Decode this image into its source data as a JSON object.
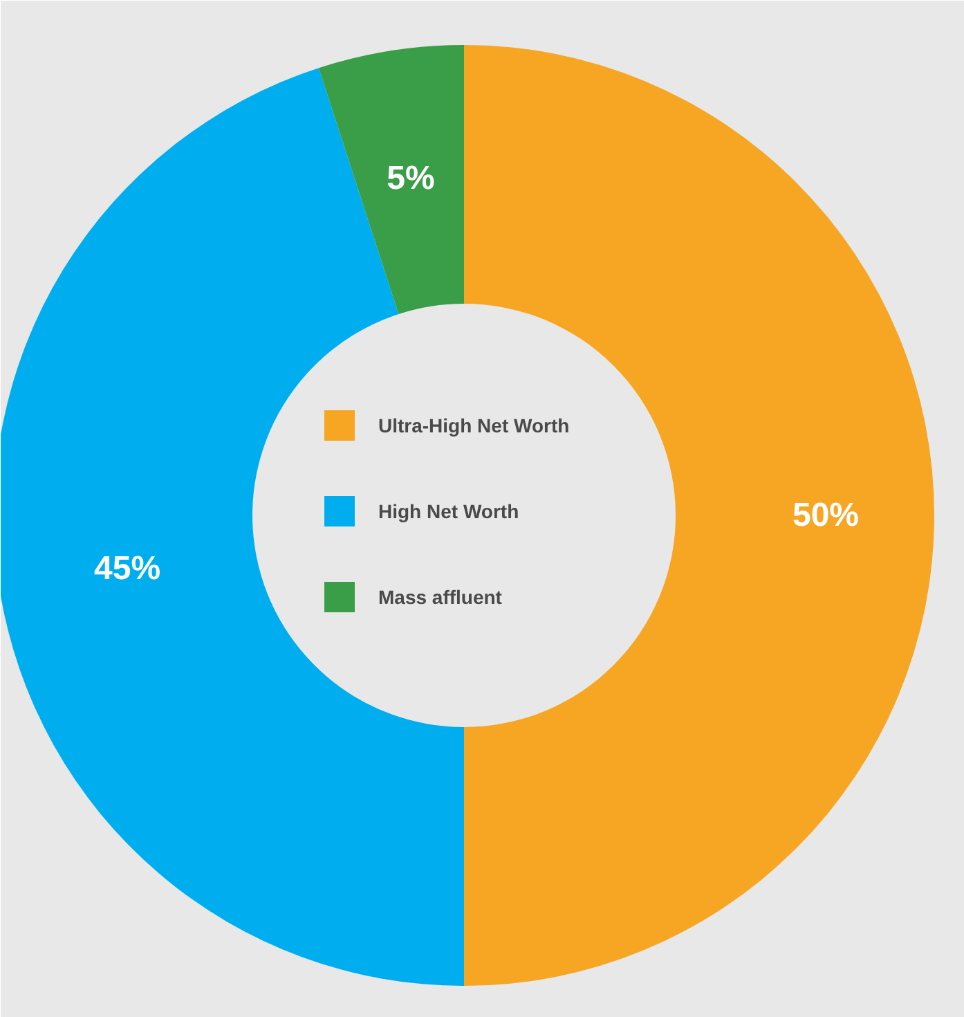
{
  "chart_data": {
    "type": "donut",
    "categories": [
      "Ultra-High Net Worth",
      "High Net Worth",
      "Mass affluent"
    ],
    "values": [
      50,
      45,
      5
    ],
    "colors": [
      "#f6a623",
      "#00aeef",
      "#3a9e48"
    ],
    "value_labels": [
      "50%",
      "45%",
      "5%"
    ],
    "legend": "center"
  }
}
